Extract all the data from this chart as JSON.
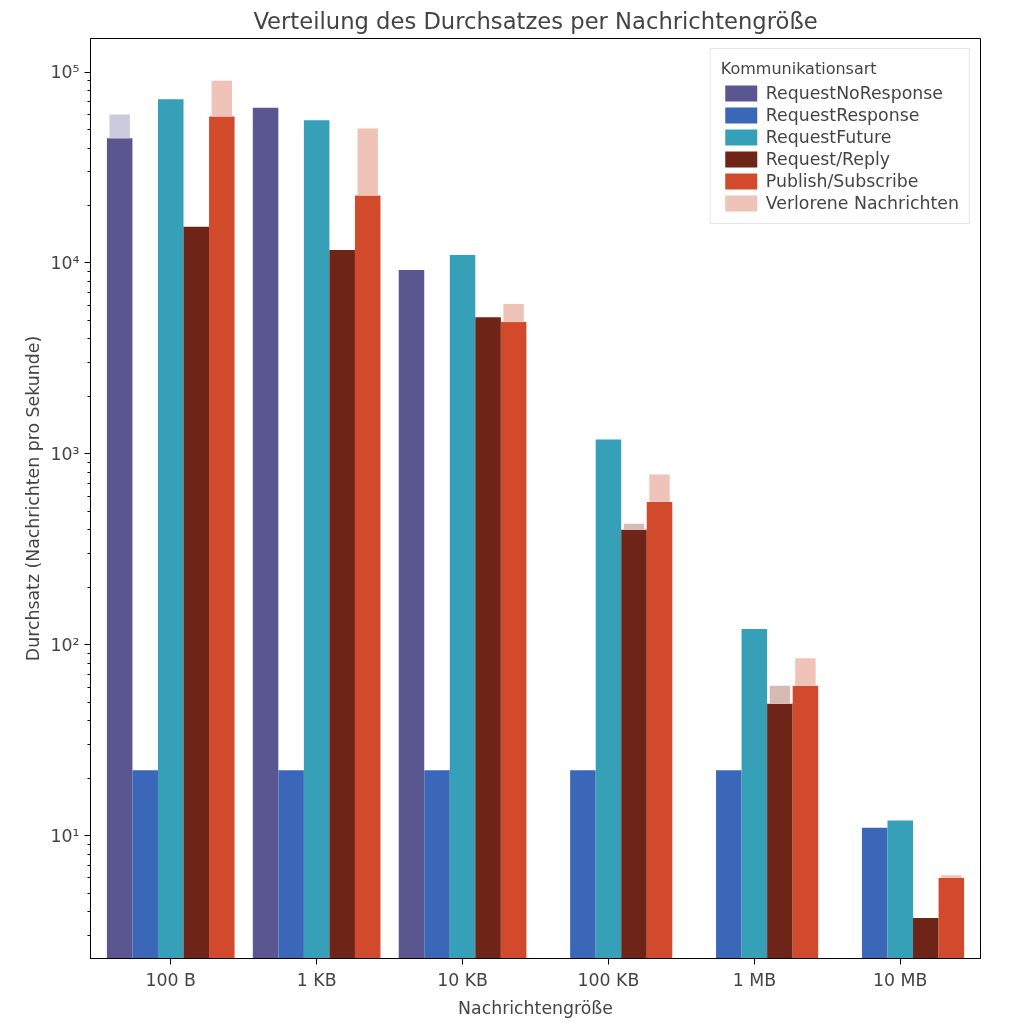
{
  "chart_data": {
    "type": "bar",
    "title": "Verteilung des Durchsatzes per Nachrichtengröße",
    "xlabel": "Nachrichtengröße",
    "ylabel": "Durchsatz (Nachrichten pro Sekunde)",
    "legend_title": "Kommunikationsart",
    "categories": [
      "100 B",
      "1 KB",
      "10 KB",
      "100 KB",
      "1 MB",
      "10 MB"
    ],
    "log": true,
    "ylim": [
      2.27,
      150000
    ],
    "yticks": [
      {
        "value": 10,
        "label": "10¹"
      },
      {
        "value": 100,
        "label": "10²"
      },
      {
        "value": 1000,
        "label": "10³"
      },
      {
        "value": 10000,
        "label": "10⁴"
      },
      {
        "value": 100000,
        "label": "10⁵"
      }
    ],
    "grid": false,
    "legend": "top right",
    "series": [
      {
        "name": "RequestNoResponse",
        "color": "#5a5790",
        "values": [
          45000,
          65000,
          9200,
          null,
          null,
          null
        ]
      },
      {
        "color": "#cccbdd",
        "base": [
          45000,
          null,
          null,
          null,
          null,
          null
        ],
        "values": [
          15000,
          null,
          null,
          null,
          null,
          null
        ]
      },
      {
        "name": "RequestResponse",
        "color": "#3a67b8",
        "values": [
          22,
          22,
          22,
          22,
          22,
          11
        ]
      },
      {
        "name": "RequestFuture",
        "color": "#36a0b9",
        "values": [
          72000,
          56000,
          11000,
          1190,
          121,
          12
        ]
      },
      {
        "name": "Request/Reply",
        "color": "#6e2416",
        "values": [
          15500,
          11700,
          5200,
          400,
          49,
          3.7
        ]
      },
      {
        "color": "#d6bbb5",
        "base": [
          null,
          null,
          null,
          400,
          49,
          null
        ],
        "values": [
          null,
          null,
          null,
          30,
          12,
          null
        ]
      },
      {
        "name": "Publish/Subscribe",
        "color": "#d24a2c",
        "values": [
          58500,
          22600,
          4900,
          560,
          61,
          6
        ]
      },
      {
        "name": "Verlorene Nachrichten",
        "color": "#f0c3b8",
        "base": [
          58500,
          22600,
          4900,
          560,
          61,
          6
        ],
        "values": [
          31500,
          28000,
          1200,
          220,
          24,
          0.2
        ]
      }
    ]
  }
}
